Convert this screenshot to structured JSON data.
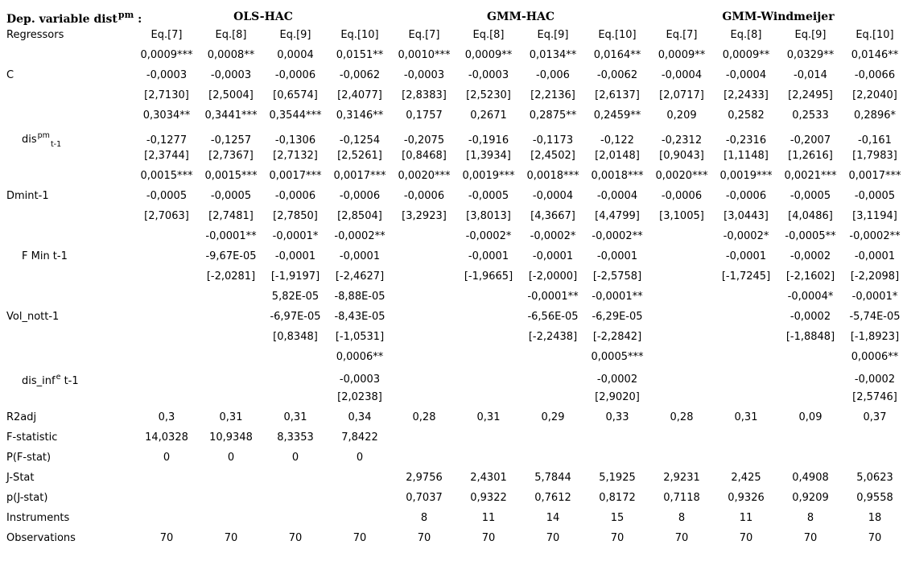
{
  "colors": {
    "text": "#000000",
    "background": "#ffffff"
  },
  "header": {
    "dep_variable": {
      "pre": "Dep. variable dist",
      "sup": "pm",
      "post": " :"
    },
    "groups": {
      "ols": "OLS-HAC",
      "gmm_hac": "GMM-HAC",
      "gmm_windmeijer": "GMM-Windmeijer"
    },
    "regressors_label": "Regressors",
    "eq_labels": [
      "Eq.[7]",
      "Eq.[8]",
      "Eq.[9]",
      "Eq.[10]",
      "Eq.[7]",
      "Eq.[8]",
      "Eq.[9]",
      "Eq.[10]",
      "Eq.[7]",
      "Eq.[8]",
      "Eq.[9]",
      "Eq.[10]"
    ]
  },
  "regressor_groups": [
    {
      "label": {
        "pre": "C",
        "sup": "",
        "sub": "",
        "post": ""
      },
      "indented": false,
      "rows": [
        [
          "0,0009***",
          "0,0008**",
          "0,0004",
          "0,0151**",
          "0,0010***",
          "0,0009**",
          "0,0134**",
          "0,0164**",
          "0,0009**",
          "0,0009**",
          "0,0329**",
          "0,0146**"
        ],
        [
          "-0,0003",
          "-0,0003",
          "-0,0006",
          "-0,0062",
          "-0,0003",
          "-0,0003",
          "-0,006",
          "-0,0062",
          "-0,0004",
          "-0,0004",
          "-0,014",
          "-0,0066"
        ],
        [
          "[2,7130]",
          "[2,5004]",
          "[0,6574]",
          "[2,4077]",
          "[2,8383]",
          "[2,5230]",
          "[2,2136]",
          "[2,6137]",
          "[2,0717]",
          "[2,2433]",
          "[2,2495]",
          "[2,2040]"
        ]
      ]
    },
    {
      "label": {
        "pre": "dis",
        "sup": "pm",
        "sub": "t-1",
        "post": ""
      },
      "indented": true,
      "rows": [
        [
          "0,3034**",
          "0,3441***",
          "0,3544***",
          "0,3146**",
          "0,1757",
          "0,2671",
          "0,2875**",
          "0,2459**",
          "0,209",
          "0,2582",
          "0,2533",
          "0,2896*"
        ],
        [
          "-0,1277",
          "-0,1257",
          "-0,1306",
          "-0,1254",
          "-0,2075",
          "-0,1916",
          "-0,1173",
          "-0,122",
          "-0,2312",
          "-0,2316",
          "-0,2007",
          "-0,161"
        ],
        [
          "[2,3744]",
          "[2,7367]",
          "[2,7132]",
          "[2,5261]",
          "[0,8468]",
          "[1,3934]",
          "[2,4502]",
          "[2,0148]",
          "[0,9043]",
          "[1,1148]",
          "[1,2616]",
          "[1,7983]"
        ]
      ]
    },
    {
      "label": {
        "pre": "Dmint-1",
        "sup": "",
        "sub": "",
        "post": ""
      },
      "indented": false,
      "rows": [
        [
          "0,0015***",
          "0,0015***",
          "0,0017***",
          "0,0017***",
          "0,0020***",
          "0,0019***",
          "0,0018***",
          "0,0018***",
          "0,0020***",
          "0,0019***",
          "0,0021***",
          "0,0017***"
        ],
        [
          "-0,0005",
          "-0,0005",
          "-0,0006",
          "-0,0006",
          "-0,0006",
          "-0,0005",
          "-0,0004",
          "-0,0004",
          "-0,0006",
          "-0,0006",
          "-0,0005",
          "-0,0005"
        ],
        [
          "[2,7063]",
          "[2,7481]",
          "[2,7850]",
          "[2,8504]",
          "[3,2923]",
          "[3,8013]",
          "[4,3667]",
          "[4,4799]",
          "[3,1005]",
          "[3,0443]",
          "[4,0486]",
          "[3,1194]"
        ]
      ]
    },
    {
      "label": {
        "pre": "F Min t-1",
        "sup": "",
        "sub": "",
        "post": ""
      },
      "indented": true,
      "rows": [
        [
          "",
          "-0,0001**",
          "-0,0001*",
          "-0,0002**",
          "",
          "-0,0002*",
          "-0,0002*",
          "-0,0002**",
          "",
          "-0,0002*",
          "-0,0005**",
          "-0,0002**"
        ],
        [
          "",
          "-9,67E-05",
          "-0,0001",
          "-0,0001",
          "",
          "-0,0001",
          "-0,0001",
          "-0,0001",
          "",
          "-0,0001",
          "-0,0002",
          "-0,0001"
        ],
        [
          "",
          "[-2,0281]",
          "[-1,9197]",
          "[-2,4627]",
          "",
          "[-1,9665]",
          "[-2,0000]",
          "[-2,5758]",
          "",
          "[-1,7245]",
          "[-2,1602]",
          "[-2,2098]"
        ]
      ]
    },
    {
      "label": {
        "pre": "Vol_nott-1",
        "sup": "",
        "sub": "",
        "post": ""
      },
      "indented": false,
      "rows": [
        [
          "",
          "",
          "5,82E-05",
          "-8,88E-05",
          "",
          "",
          "-0,0001**",
          "-0,0001**",
          "",
          "",
          "-0,0004*",
          "-0,0001*"
        ],
        [
          "",
          "",
          "-6,97E-05",
          "-8,43E-05",
          "",
          "",
          "-6,56E-05",
          "-6,29E-05",
          "",
          "",
          "-0,0002",
          "-5,74E-05"
        ],
        [
          "",
          "",
          "[0,8348]",
          "[-1,0531]",
          "",
          "",
          "[-2,2438]",
          "[-2,2842]",
          "",
          "",
          "[-1,8848]",
          "[-1,8923]"
        ]
      ]
    },
    {
      "label": {
        "pre": "dis_inf",
        "sup": "e",
        "sub": "",
        "post": " t-1"
      },
      "indented": true,
      "rows": [
        [
          "",
          "",
          "",
          "0,0006**",
          "",
          "",
          "",
          "0,0005***",
          "",
          "",
          "",
          "0,0006**"
        ],
        [
          "",
          "",
          "",
          "-0,0003",
          "",
          "",
          "",
          "-0,0002",
          "",
          "",
          "",
          "-0,0002"
        ],
        [
          "",
          "",
          "",
          "[2,0238]",
          "",
          "",
          "",
          "[2,9020]",
          "",
          "",
          "",
          "[2,5746]"
        ]
      ]
    }
  ],
  "stat_rows": [
    {
      "label": "R2adj",
      "values": [
        "0,3",
        "0,31",
        "0,31",
        "0,34",
        "0,28",
        "0,31",
        "0,29",
        "0,33",
        "0,28",
        "0,31",
        "0,09",
        "0,37"
      ]
    },
    {
      "label": "F-statistic",
      "values": [
        "14,0328",
        "10,9348",
        "8,3353",
        "7,8422",
        "",
        "",
        "",
        "",
        "",
        "",
        "",
        ""
      ]
    },
    {
      "label": "P(F-stat)",
      "values": [
        "0",
        "0",
        "0",
        "0",
        "",
        "",
        "",
        "",
        "",
        "",
        "",
        ""
      ]
    },
    {
      "label": "J-Stat",
      "values": [
        "",
        "",
        "",
        "",
        "2,9756",
        "2,4301",
        "5,7844",
        "5,1925",
        "2,9231",
        "2,425",
        "0,4908",
        "5,0623"
      ]
    },
    {
      "label": "p(J-stat)",
      "values": [
        "",
        "",
        "",
        "",
        "0,7037",
        "0,9322",
        "0,7612",
        "0,8172",
        "0,7118",
        "0,9326",
        "0,9209",
        "0,9558"
      ]
    },
    {
      "label": "Instruments",
      "values": [
        "",
        "",
        "",
        "",
        "8",
        "11",
        "14",
        "15",
        "8",
        "11",
        "8",
        "18"
      ]
    },
    {
      "label": "Observations",
      "values": [
        "70",
        "70",
        "70",
        "70",
        "70",
        "70",
        "70",
        "70",
        "70",
        "70",
        "70",
        "70"
      ]
    }
  ]
}
